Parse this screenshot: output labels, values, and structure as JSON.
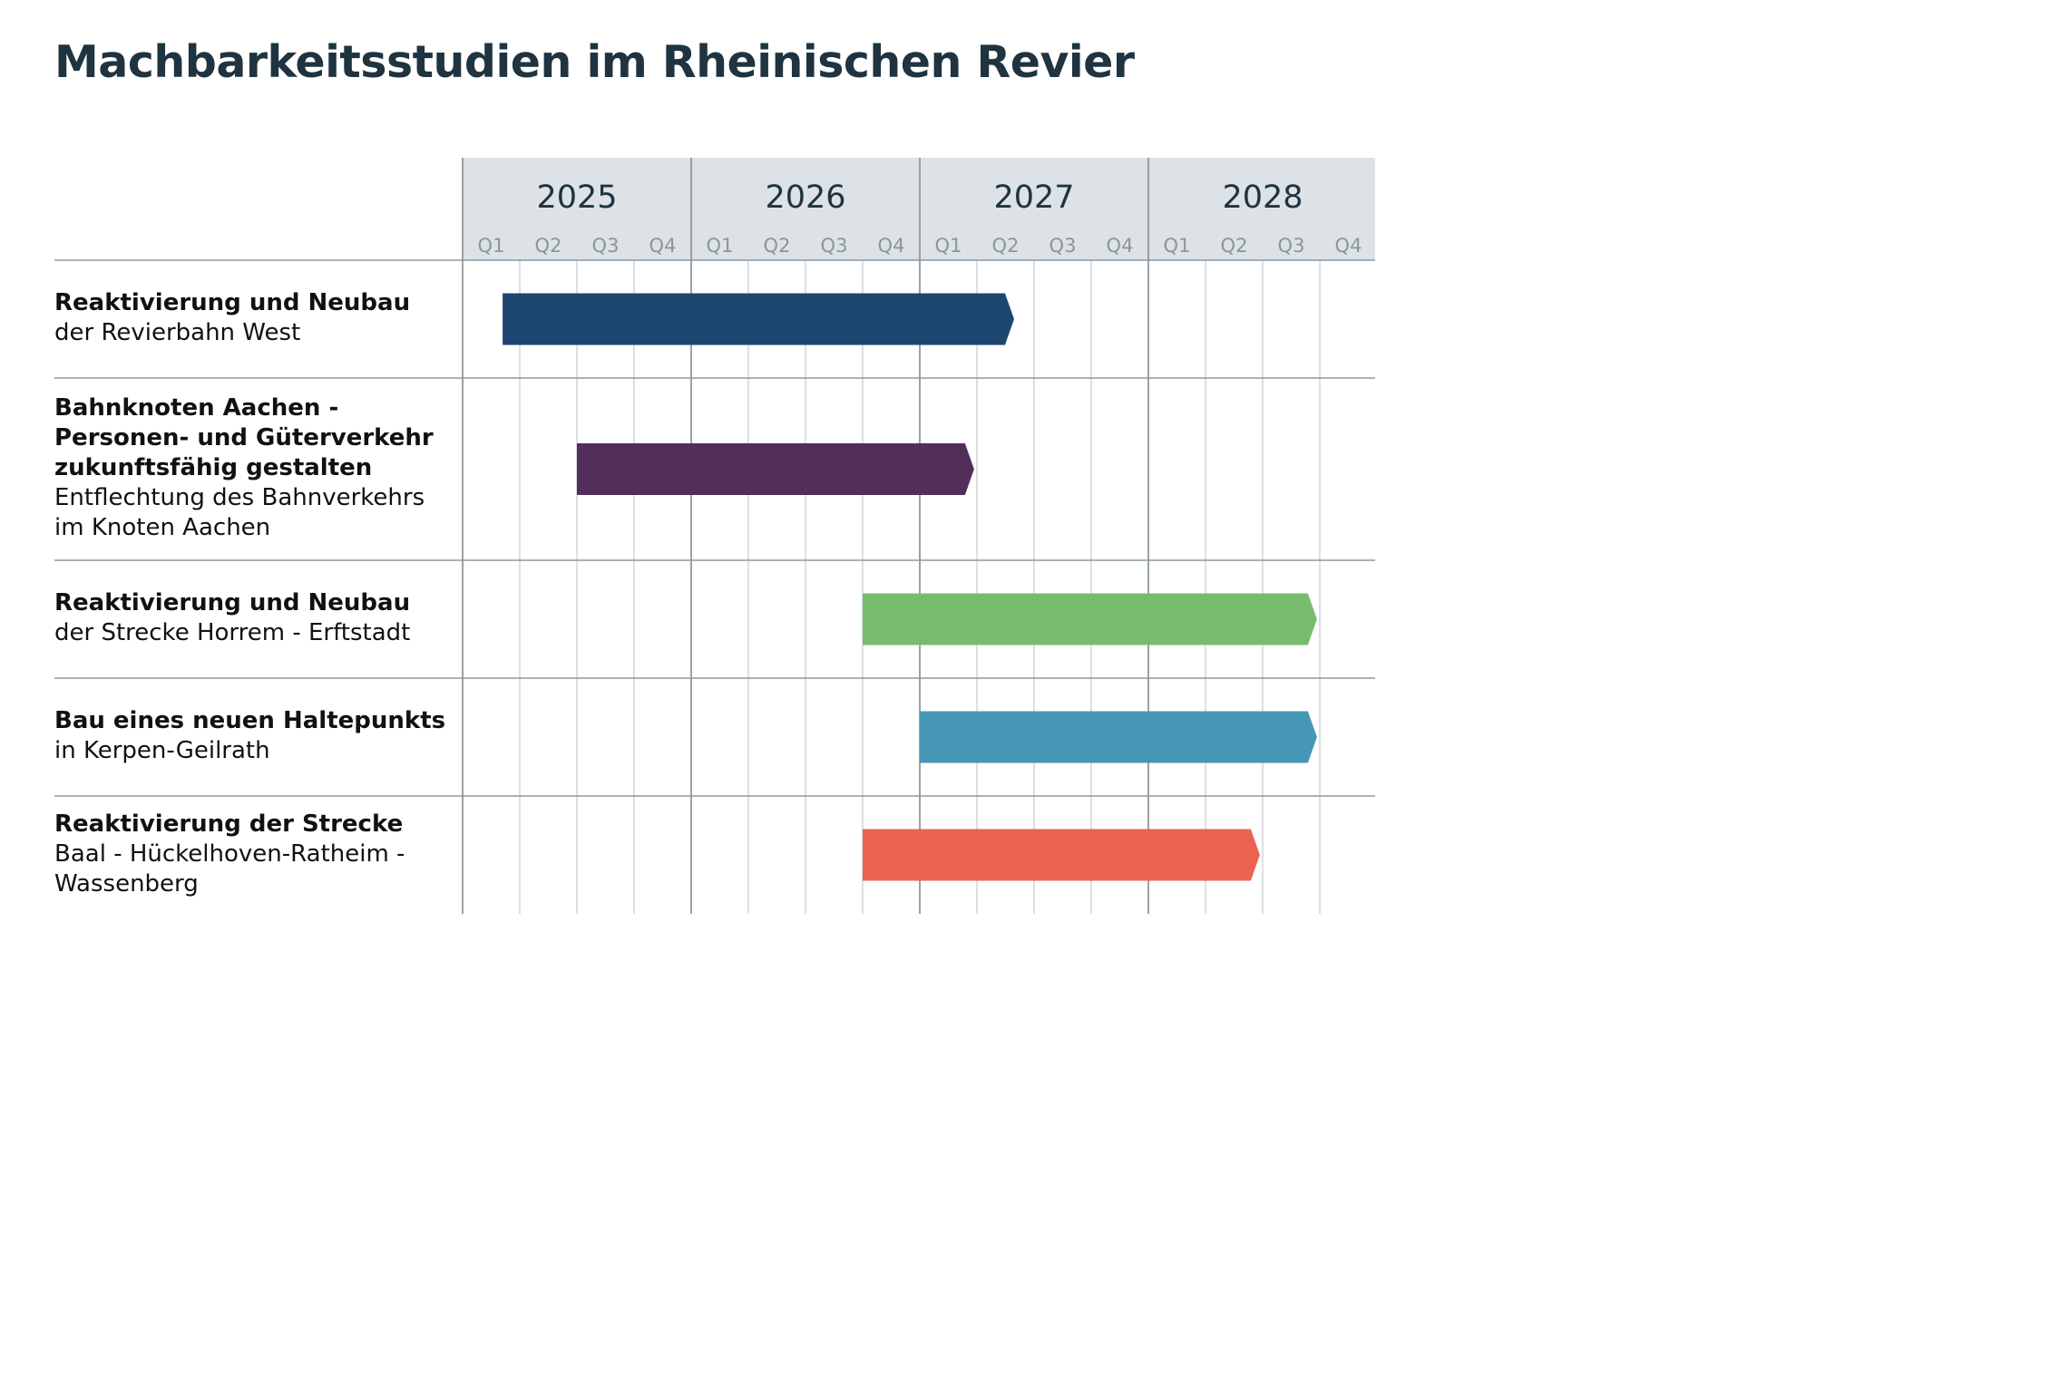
{
  "title": "Machbarkeitsstudien im Rheinischen Revier",
  "chart_data": {
    "type": "gantt",
    "time_unit": "quarter",
    "years": [
      "2025",
      "2026",
      "2027",
      "2028"
    ],
    "quarters": [
      "Q1",
      "Q2",
      "Q3",
      "Q4"
    ],
    "x_range": [
      "2025 Q1",
      "2028 Q4"
    ],
    "grid": true,
    "rows": [
      {
        "label_bold": [
          "Reaktivierung und Neubau"
        ],
        "label_normal": [
          "der Revierbahn West"
        ],
        "start": "2025 Q1",
        "start_offset_quarters": 0.7,
        "end_offset_quarters": 9.65,
        "color": "#1c4670"
      },
      {
        "label_bold": [
          "Bahnknoten Aachen -",
          "Personen- und Güterverkehr",
          "zukunftsfähig gestalten"
        ],
        "label_normal": [
          "Entflechtung des Bahnverkehrs",
          "im Knoten Aachen"
        ],
        "start_offset_quarters": 2.0,
        "end_offset_quarters": 8.95,
        "color": "#522e5b"
      },
      {
        "label_bold": [
          "Reaktivierung und Neubau"
        ],
        "label_normal": [
          "der Strecke Horrem - Erftstadt"
        ],
        "start_offset_quarters": 7.0,
        "end_offset_quarters": 14.95,
        "color": "#77bc6e"
      },
      {
        "label_bold": [
          "Bau eines neuen Haltepunkts"
        ],
        "label_normal": [
          "in Kerpen-Geilrath"
        ],
        "start_offset_quarters": 8.0,
        "end_offset_quarters": 14.95,
        "color": "#4697b6"
      },
      {
        "label_bold": [
          "Reaktivierung der Strecke"
        ],
        "label_normal": [
          "Baal - Hückelhoven-Ratheim -",
          "Wassenberg"
        ],
        "start_offset_quarters": 7.0,
        "end_offset_quarters": 13.95,
        "color": "#ec6150"
      }
    ],
    "colors": {
      "header_background": "#dce2e6",
      "major_grid": "#8e989e",
      "minor_grid": "#cdd3d7",
      "text": "#1f3340"
    }
  }
}
